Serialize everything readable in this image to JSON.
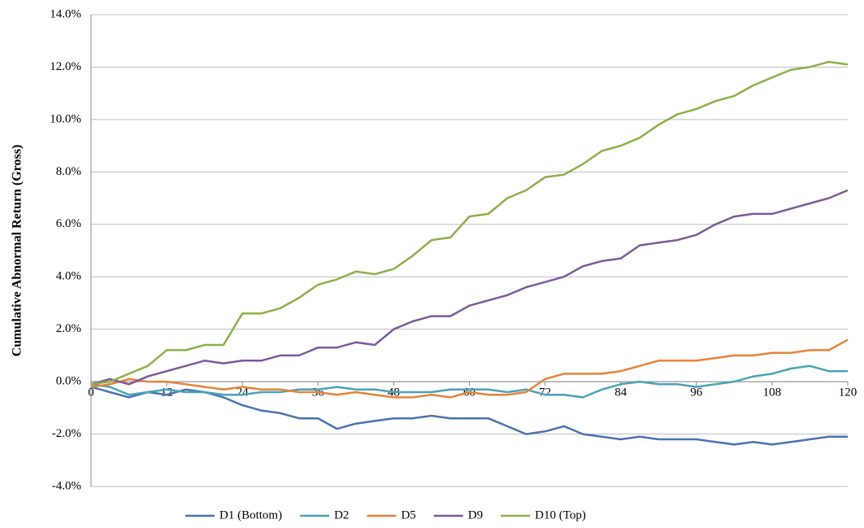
{
  "chart_data": {
    "type": "line",
    "y_label": "Cumulative Abnormal Return (Gross)",
    "x": [
      0,
      3,
      6,
      9,
      12,
      15,
      18,
      21,
      24,
      27,
      30,
      33,
      36,
      39,
      42,
      45,
      48,
      51,
      54,
      57,
      60,
      63,
      66,
      69,
      72,
      75,
      78,
      81,
      84,
      87,
      90,
      93,
      96,
      99,
      102,
      105,
      108,
      111,
      114,
      117,
      120
    ],
    "xlim": [
      0,
      120
    ],
    "xticks": [
      0,
      12,
      24,
      36,
      48,
      60,
      72,
      84,
      96,
      108,
      120
    ],
    "ylim": [
      -4,
      14
    ],
    "yticks": [
      {
        "value": -4,
        "label": "-4.0%"
      },
      {
        "value": -2,
        "label": "-2.0%"
      },
      {
        "value": 0,
        "label": "0.0%"
      },
      {
        "value": 2,
        "label": "2.0%"
      },
      {
        "value": 4,
        "label": "4.0%"
      },
      {
        "value": 6,
        "label": "6.0%"
      },
      {
        "value": 8,
        "label": "8.0%"
      },
      {
        "value": 10,
        "label": "10.0%"
      },
      {
        "value": 12,
        "label": "12.0%"
      },
      {
        "value": 14,
        "label": "14.0%"
      }
    ],
    "grid": true,
    "legend": "bottom",
    "series": [
      {
        "name": "D1 (Bottom)",
        "color": "#4a73b0",
        "values": [
          -0.2,
          -0.4,
          -0.6,
          -0.4,
          -0.5,
          -0.3,
          -0.4,
          -0.6,
          -0.9,
          -1.1,
          -1.2,
          -1.4,
          -1.4,
          -1.8,
          -1.6,
          -1.5,
          -1.4,
          -1.4,
          -1.3,
          -1.4,
          -1.4,
          -1.4,
          -1.7,
          -2.0,
          -1.9,
          -1.7,
          -2.0,
          -2.1,
          -2.2,
          -2.1,
          -2.2,
          -2.2,
          -2.2,
          -2.3,
          -2.4,
          -2.3,
          -2.4,
          -2.3,
          -2.2,
          -2.1,
          -2.1
        ]
      },
      {
        "name": "D2",
        "color": "#4aa3b8",
        "values": [
          -0.1,
          -0.2,
          -0.5,
          -0.4,
          -0.3,
          -0.4,
          -0.4,
          -0.5,
          -0.5,
          -0.4,
          -0.4,
          -0.3,
          -0.3,
          -0.2,
          -0.3,
          -0.3,
          -0.4,
          -0.4,
          -0.4,
          -0.3,
          -0.3,
          -0.3,
          -0.4,
          -0.3,
          -0.5,
          -0.5,
          -0.6,
          -0.3,
          -0.1,
          0.0,
          -0.1,
          -0.1,
          -0.2,
          -0.1,
          0.0,
          0.2,
          0.3,
          0.5,
          0.6,
          0.4,
          0.4
        ]
      },
      {
        "name": "D5",
        "color": "#e6843a",
        "values": [
          -0.2,
          -0.1,
          0.1,
          0.0,
          0.0,
          -0.1,
          -0.2,
          -0.3,
          -0.2,
          -0.3,
          -0.3,
          -0.4,
          -0.4,
          -0.5,
          -0.4,
          -0.5,
          -0.6,
          -0.6,
          -0.5,
          -0.6,
          -0.4,
          -0.5,
          -0.5,
          -0.4,
          0.1,
          0.3,
          0.3,
          0.3,
          0.4,
          0.6,
          0.8,
          0.8,
          0.8,
          0.9,
          1.0,
          1.0,
          1.1,
          1.1,
          1.2,
          1.2,
          1.6
        ]
      },
      {
        "name": "D9",
        "color": "#7d5a9a",
        "values": [
          -0.1,
          0.1,
          -0.1,
          0.2,
          0.4,
          0.6,
          0.8,
          0.7,
          0.8,
          0.8,
          1.0,
          1.0,
          1.3,
          1.3,
          1.5,
          1.4,
          2.0,
          2.3,
          2.5,
          2.5,
          2.9,
          3.1,
          3.3,
          3.6,
          3.8,
          4.0,
          4.4,
          4.6,
          4.7,
          5.2,
          5.3,
          5.4,
          5.6,
          6.0,
          6.3,
          6.4,
          6.4,
          6.6,
          6.8,
          7.0,
          7.3
        ]
      },
      {
        "name": "D10 (Top)",
        "color": "#8db04a",
        "values": [
          -0.1,
          0.0,
          0.3,
          0.6,
          1.2,
          1.2,
          1.4,
          1.4,
          2.6,
          2.6,
          2.8,
          3.2,
          3.7,
          3.9,
          4.2,
          4.1,
          4.3,
          4.8,
          5.4,
          5.5,
          6.3,
          6.4,
          7.0,
          7.3,
          7.8,
          7.9,
          8.3,
          8.8,
          9.0,
          9.3,
          9.8,
          10.2,
          10.4,
          10.7,
          10.9,
          11.3,
          11.6,
          11.9,
          12.0,
          12.2,
          12.1
        ]
      }
    ]
  }
}
